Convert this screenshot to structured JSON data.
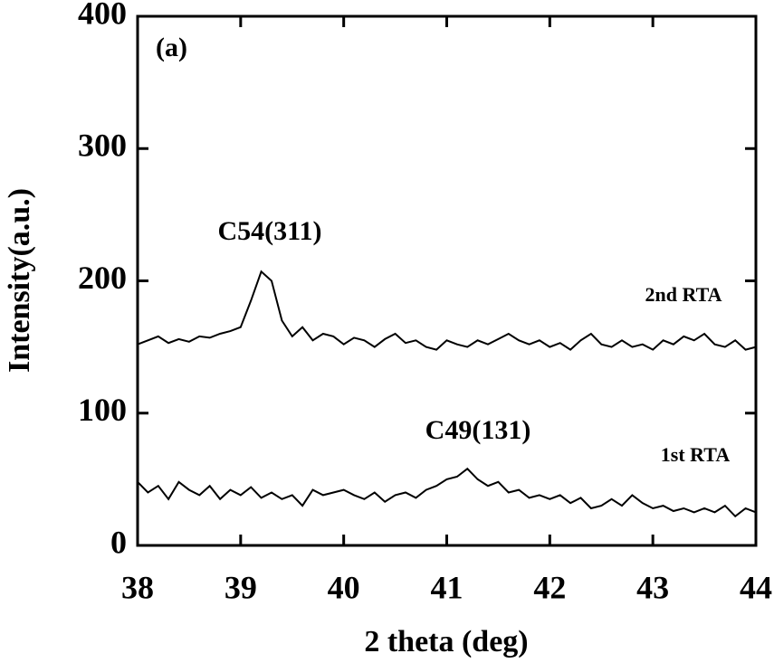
{
  "chart_data": {
    "type": "line",
    "xlabel": "2 theta (deg)",
    "ylabel": "Intensity(a.u.)",
    "annotations": [
      "(a)",
      "C54(311)",
      "C49(131)"
    ],
    "x": [
      38.0,
      38.1,
      38.2,
      38.3,
      38.4,
      38.5,
      38.6,
      38.7,
      38.8,
      38.9,
      39.0,
      39.1,
      39.2,
      39.3,
      39.4,
      39.5,
      39.6,
      39.7,
      39.8,
      39.9,
      40.0,
      40.1,
      40.2,
      40.3,
      40.4,
      40.5,
      40.6,
      40.7,
      40.8,
      40.9,
      41.0,
      41.1,
      41.2,
      41.3,
      41.4,
      41.5,
      41.6,
      41.7,
      41.8,
      41.9,
      42.0,
      42.1,
      42.2,
      42.3,
      42.4,
      42.5,
      42.6,
      42.7,
      42.8,
      42.9,
      43.0,
      43.1,
      43.2,
      43.3,
      43.4,
      43.5,
      43.6,
      43.7,
      43.8,
      43.9,
      44.0
    ],
    "series": [
      {
        "name": "2nd RTA",
        "color": "#000000",
        "values": [
          152,
          155,
          158,
          153,
          156,
          154,
          158,
          157,
          160,
          162,
          165,
          185,
          207,
          200,
          170,
          158,
          165,
          155,
          160,
          158,
          152,
          157,
          155,
          150,
          156,
          160,
          153,
          155,
          150,
          148,
          155,
          152,
          150,
          155,
          152,
          156,
          160,
          155,
          152,
          155,
          150,
          153,
          148,
          155,
          160,
          152,
          150,
          155,
          150,
          152,
          148,
          155,
          152,
          158,
          155,
          160,
          152,
          150,
          155,
          148,
          150
        ]
      },
      {
        "name": "1st RTA",
        "color": "#000000",
        "values": [
          48,
          40,
          45,
          35,
          48,
          42,
          38,
          45,
          35,
          42,
          38,
          44,
          36,
          40,
          35,
          38,
          30,
          42,
          38,
          40,
          42,
          38,
          35,
          40,
          33,
          38,
          40,
          36,
          42,
          45,
          50,
          52,
          58,
          50,
          45,
          48,
          40,
          42,
          36,
          38,
          35,
          38,
          32,
          36,
          28,
          30,
          35,
          30,
          38,
          32,
          28,
          30,
          26,
          28,
          25,
          28,
          25,
          30,
          22,
          28,
          25
        ]
      }
    ],
    "xlim": [
      38,
      44
    ],
    "xticks": [
      38,
      39,
      40,
      41,
      42,
      43,
      44
    ],
    "ylim": [
      0,
      400
    ],
    "yticks": [
      0,
      100,
      200,
      300,
      400
    ]
  }
}
